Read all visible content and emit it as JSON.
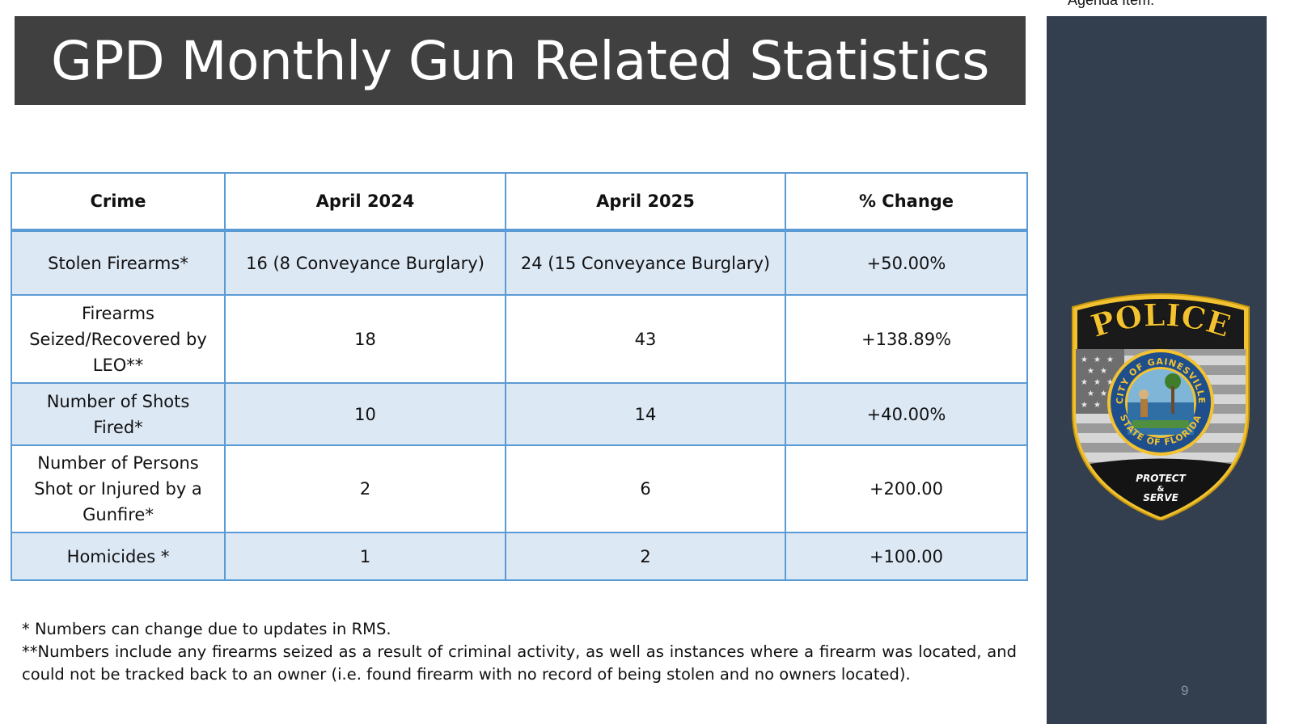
{
  "header": {
    "title": "GPD Monthly Gun Related Statistics",
    "agenda_label": "Agenda Item:"
  },
  "table": {
    "columns": [
      "Crime",
      "April 2024",
      "April 2025",
      "% Change"
    ],
    "rows": [
      {
        "crime": "Stolen Firearms*",
        "april_2024": "16 (8 Conveyance Burglary)",
        "april_2025": "24 (15 Conveyance Burglary)",
        "change": "+50.00%"
      },
      {
        "crime": "Firearms Seized/Recovered by LEO**",
        "april_2024": "18",
        "april_2025": "43",
        "change": "+138.89%"
      },
      {
        "crime": "Number of Shots Fired*",
        "april_2024": "10",
        "april_2025": "14",
        "change": "+40.00%"
      },
      {
        "crime": "Number of Persons Shot or Injured by a Gunfire*",
        "april_2024": "2",
        "april_2025": "6",
        "change": "+200.00"
      },
      {
        "crime": "Homicides *",
        "april_2024": "1",
        "april_2025": "2",
        "change": "+100.00"
      }
    ]
  },
  "notes": {
    "note_1": "* Numbers can change due to updates in RMS.",
    "note_2": "**Numbers include any firearms seized as a result of criminal activity, as well as instances where a firearm was located, and could not be tracked back to an owner (i.e. found firearm with no record of being stolen and no owners located)."
  },
  "badge": {
    "top_text": "POLICE",
    "ring_top": "CITY OF GAINESVILLE",
    "ring_bottom": "STATE OF FLORIDA",
    "motto_1": "PROTECT",
    "motto_2": "&",
    "motto_3": "SERVE",
    "icon": "police-badge-icon"
  },
  "footer": {
    "page_number": "9"
  },
  "colors": {
    "title_bar": "#404040",
    "table_border": "#5b9bd5",
    "row_band": "#dde8f5",
    "side_panel": "#333f4f",
    "badge_gold": "#f2c230"
  }
}
